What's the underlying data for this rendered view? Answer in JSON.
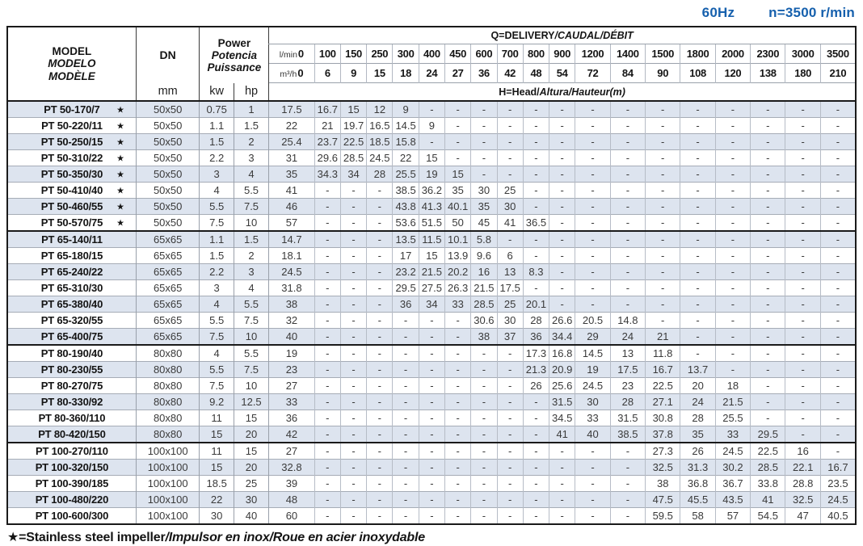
{
  "page": {
    "frequency": "60Hz",
    "speed": "n=3500 r/min",
    "colors": {
      "accent_blue": "#1660ad",
      "row_alt_blue": "#dde4ef",
      "border_dark": "#1a1a1a"
    },
    "footnote_parts": [
      {
        "text": "★=Stainless steel impeller",
        "style": "normal"
      },
      {
        "text": "/Impulsor en inox/Roue en acier inoxydable",
        "style": "italic"
      }
    ]
  },
  "table": {
    "star_symbol": "★",
    "header": {
      "model_parts": [
        {
          "text": "MODEL",
          "style": "normal"
        },
        {
          "text": "MODELO",
          "style": "italic"
        },
        {
          "text": "MODÈLE",
          "style": "italic"
        }
      ],
      "dn_label": "DN",
      "dn_unit": "mm",
      "power_parts": [
        {
          "text": "Power",
          "style": "normal"
        },
        {
          "text": "Potencia",
          "style": "italic"
        },
        {
          "text": "Puissance",
          "style": "italic"
        }
      ],
      "power_units": [
        "kw",
        "hp"
      ],
      "delivery_title_parts": [
        {
          "text": "Q=DELIVERY",
          "style": "normal"
        },
        {
          "text": "/CAUDAL/DÉBIT",
          "style": "italic"
        }
      ],
      "head_title_parts": [
        {
          "text": "H=Head/",
          "style": "normal"
        },
        {
          "text": "Altura/Hauteur(m)",
          "style": "italic"
        }
      ],
      "flow_lmin_label": "l/min",
      "flow_m3h_label": "m³/h",
      "flow_lmin": [
        "0",
        "100",
        "150",
        "250",
        "300",
        "400",
        "450",
        "600",
        "700",
        "800",
        "900",
        "1200",
        "1400",
        "1500",
        "1800",
        "2000",
        "2300",
        "3000",
        "3500"
      ],
      "flow_m3h": [
        "0",
        "6",
        "9",
        "15",
        "18",
        "24",
        "27",
        "36",
        "42",
        "48",
        "54",
        "72",
        "84",
        "90",
        "108",
        "120",
        "138",
        "180",
        "210"
      ]
    },
    "rows": [
      {
        "group": "PT50",
        "model": "PT 50-170/7",
        "star": true,
        "dn": "50x50",
        "kw": "0.75",
        "hp": "1",
        "heads": [
          "17.5",
          "16.7",
          "15",
          "12",
          "9",
          "-",
          "-",
          "-",
          "-",
          "-",
          "-",
          "-",
          "-",
          "-",
          "-",
          "-",
          "-",
          "-",
          "-"
        ]
      },
      {
        "group": "PT50",
        "model": "PT 50-220/11",
        "star": true,
        "dn": "50x50",
        "kw": "1.1",
        "hp": "1.5",
        "heads": [
          "22",
          "21",
          "19.7",
          "16.5",
          "14.5",
          "9",
          "-",
          "-",
          "-",
          "-",
          "-",
          "-",
          "-",
          "-",
          "-",
          "-",
          "-",
          "-",
          "-"
        ]
      },
      {
        "group": "PT50",
        "model": "PT 50-250/15",
        "star": true,
        "dn": "50x50",
        "kw": "1.5",
        "hp": "2",
        "heads": [
          "25.4",
          "23.7",
          "22.5",
          "18.5",
          "15.8",
          "-",
          "-",
          "-",
          "-",
          "-",
          "-",
          "-",
          "-",
          "-",
          "-",
          "-",
          "-",
          "-",
          "-"
        ]
      },
      {
        "group": "PT50",
        "model": "PT 50-310/22",
        "star": true,
        "dn": "50x50",
        "kw": "2.2",
        "hp": "3",
        "heads": [
          "31",
          "29.6",
          "28.5",
          "24.5",
          "22",
          "15",
          "-",
          "-",
          "-",
          "-",
          "-",
          "-",
          "-",
          "-",
          "-",
          "-",
          "-",
          "-",
          "-"
        ]
      },
      {
        "group": "PT50",
        "model": "PT 50-350/30",
        "star": true,
        "dn": "50x50",
        "kw": "3",
        "hp": "4",
        "heads": [
          "35",
          "34.3",
          "34",
          "28",
          "25.5",
          "19",
          "15",
          "-",
          "-",
          "-",
          "-",
          "-",
          "-",
          "-",
          "-",
          "-",
          "-",
          "-",
          "-"
        ]
      },
      {
        "group": "PT50",
        "model": "PT 50-410/40",
        "star": true,
        "dn": "50x50",
        "kw": "4",
        "hp": "5.5",
        "heads": [
          "41",
          "-",
          "-",
          "-",
          "38.5",
          "36.2",
          "35",
          "30",
          "25",
          "-",
          "-",
          "-",
          "-",
          "-",
          "-",
          "-",
          "-",
          "-",
          "-"
        ]
      },
      {
        "group": "PT50",
        "model": "PT 50-460/55",
        "star": true,
        "dn": "50x50",
        "kw": "5.5",
        "hp": "7.5",
        "heads": [
          "46",
          "-",
          "-",
          "-",
          "43.8",
          "41.3",
          "40.1",
          "35",
          "30",
          "-",
          "-",
          "-",
          "-",
          "-",
          "-",
          "-",
          "-",
          "-",
          "-"
        ]
      },
      {
        "group": "PT50",
        "model": "PT 50-570/75",
        "star": true,
        "dn": "50x50",
        "kw": "7.5",
        "hp": "10",
        "heads": [
          "57",
          "-",
          "-",
          "-",
          "53.6",
          "51.5",
          "50",
          "45",
          "41",
          "36.5",
          "-",
          "-",
          "-",
          "-",
          "-",
          "-",
          "-",
          "-",
          "-"
        ]
      },
      {
        "group": "PT65",
        "model": "PT 65-140/11",
        "star": false,
        "dn": "65x65",
        "kw": "1.1",
        "hp": "1.5",
        "heads": [
          "14.7",
          "-",
          "-",
          "-",
          "13.5",
          "11.5",
          "10.1",
          "5.8",
          "-",
          "-",
          "-",
          "-",
          "-",
          "-",
          "-",
          "-",
          "-",
          "-",
          "-"
        ]
      },
      {
        "group": "PT65",
        "model": "PT 65-180/15",
        "star": false,
        "dn": "65x65",
        "kw": "1.5",
        "hp": "2",
        "heads": [
          "18.1",
          "-",
          "-",
          "-",
          "17",
          "15",
          "13.9",
          "9.6",
          "6",
          "-",
          "-",
          "-",
          "-",
          "-",
          "-",
          "-",
          "-",
          "-",
          "-"
        ]
      },
      {
        "group": "PT65",
        "model": "PT 65-240/22",
        "star": false,
        "dn": "65x65",
        "kw": "2.2",
        "hp": "3",
        "heads": [
          "24.5",
          "-",
          "-",
          "-",
          "23.2",
          "21.5",
          "20.2",
          "16",
          "13",
          "8.3",
          "-",
          "-",
          "-",
          "-",
          "-",
          "-",
          "-",
          "-",
          "-"
        ]
      },
      {
        "group": "PT65",
        "model": "PT 65-310/30",
        "star": false,
        "dn": "65x65",
        "kw": "3",
        "hp": "4",
        "heads": [
          "31.8",
          "-",
          "-",
          "-",
          "29.5",
          "27.5",
          "26.3",
          "21.5",
          "17.5",
          "-",
          "-",
          "-",
          "-",
          "-",
          "-",
          "-",
          "-",
          "-",
          "-"
        ]
      },
      {
        "group": "PT65",
        "model": "PT 65-380/40",
        "star": false,
        "dn": "65x65",
        "kw": "4",
        "hp": "5.5",
        "heads": [
          "38",
          "-",
          "-",
          "-",
          "36",
          "34",
          "33",
          "28.5",
          "25",
          "20.1",
          "-",
          "-",
          "-",
          "-",
          "-",
          "-",
          "-",
          "-",
          "-"
        ]
      },
      {
        "group": "PT65",
        "model": "PT 65-320/55",
        "star": false,
        "dn": "65x65",
        "kw": "5.5",
        "hp": "7.5",
        "heads": [
          "32",
          "-",
          "-",
          "-",
          "-",
          "-",
          "-",
          "30.6",
          "30",
          "28",
          "26.6",
          "20.5",
          "14.8",
          "-",
          "-",
          "-",
          "-",
          "-",
          "-"
        ]
      },
      {
        "group": "PT65",
        "model": "PT 65-400/75",
        "star": false,
        "dn": "65x65",
        "kw": "7.5",
        "hp": "10",
        "heads": [
          "40",
          "-",
          "-",
          "-",
          "-",
          "-",
          "-",
          "38",
          "37",
          "36",
          "34.4",
          "29",
          "24",
          "21",
          "-",
          "-",
          "-",
          "-",
          "-"
        ]
      },
      {
        "group": "PT80",
        "model": "PT 80-190/40",
        "star": false,
        "dn": "80x80",
        "kw": "4",
        "hp": "5.5",
        "heads": [
          "19",
          "-",
          "-",
          "-",
          "-",
          "-",
          "-",
          "-",
          "-",
          "17.3",
          "16.8",
          "14.5",
          "13",
          "11.8",
          "-",
          "-",
          "-",
          "-",
          "-"
        ]
      },
      {
        "group": "PT80",
        "model": "PT 80-230/55",
        "star": false,
        "dn": "80x80",
        "kw": "5.5",
        "hp": "7.5",
        "heads": [
          "23",
          "-",
          "-",
          "-",
          "-",
          "-",
          "-",
          "-",
          "-",
          "21.3",
          "20.9",
          "19",
          "17.5",
          "16.7",
          "13.7",
          "-",
          "-",
          "-",
          "-"
        ]
      },
      {
        "group": "PT80",
        "model": "PT 80-270/75",
        "star": false,
        "dn": "80x80",
        "kw": "7.5",
        "hp": "10",
        "heads": [
          "27",
          "-",
          "-",
          "-",
          "-",
          "-",
          "-",
          "-",
          "-",
          "26",
          "25.6",
          "24.5",
          "23",
          "22.5",
          "20",
          "18",
          "-",
          "-",
          "-"
        ]
      },
      {
        "group": "PT80",
        "model": "PT 80-330/92",
        "star": false,
        "dn": "80x80",
        "kw": "9.2",
        "hp": "12.5",
        "heads": [
          "33",
          "-",
          "-",
          "-",
          "-",
          "-",
          "-",
          "-",
          "-",
          "-",
          "31.5",
          "30",
          "28",
          "27.1",
          "24",
          "21.5",
          "-",
          "-",
          "-"
        ]
      },
      {
        "group": "PT80",
        "model": "PT 80-360/110",
        "star": false,
        "dn": "80x80",
        "kw": "11",
        "hp": "15",
        "heads": [
          "36",
          "-",
          "-",
          "-",
          "-",
          "-",
          "-",
          "-",
          "-",
          "-",
          "34.5",
          "33",
          "31.5",
          "30.8",
          "28",
          "25.5",
          "-",
          "-",
          "-"
        ]
      },
      {
        "group": "PT80",
        "model": "PT 80-420/150",
        "star": false,
        "dn": "80x80",
        "kw": "15",
        "hp": "20",
        "heads": [
          "42",
          "-",
          "-",
          "-",
          "-",
          "-",
          "-",
          "-",
          "-",
          "-",
          "41",
          "40",
          "38.5",
          "37.8",
          "35",
          "33",
          "29.5",
          "-",
          "-"
        ]
      },
      {
        "group": "PT100",
        "model": "PT 100-270/110",
        "star": false,
        "dn": "100x100",
        "kw": "11",
        "hp": "15",
        "heads": [
          "27",
          "-",
          "-",
          "-",
          "-",
          "-",
          "-",
          "-",
          "-",
          "-",
          "-",
          "-",
          "-",
          "27.3",
          "26",
          "24.5",
          "22.5",
          "16",
          "-"
        ]
      },
      {
        "group": "PT100",
        "model": "PT 100-320/150",
        "star": false,
        "dn": "100x100",
        "kw": "15",
        "hp": "20",
        "heads": [
          "32.8",
          "-",
          "-",
          "-",
          "-",
          "-",
          "-",
          "-",
          "-",
          "-",
          "-",
          "-",
          "-",
          "32.5",
          "31.3",
          "30.2",
          "28.5",
          "22.1",
          "16.7"
        ]
      },
      {
        "group": "PT100",
        "model": "PT 100-390/185",
        "star": false,
        "dn": "100x100",
        "kw": "18.5",
        "hp": "25",
        "heads": [
          "39",
          "-",
          "-",
          "-",
          "-",
          "-",
          "-",
          "-",
          "-",
          "-",
          "-",
          "-",
          "-",
          "38",
          "36.8",
          "36.7",
          "33.8",
          "28.8",
          "23.5"
        ]
      },
      {
        "group": "PT100",
        "model": "PT 100-480/220",
        "star": false,
        "dn": "100x100",
        "kw": "22",
        "hp": "30",
        "heads": [
          "48",
          "-",
          "-",
          "-",
          "-",
          "-",
          "-",
          "-",
          "-",
          "-",
          "-",
          "-",
          "-",
          "47.5",
          "45.5",
          "43.5",
          "41",
          "32.5",
          "24.5"
        ]
      },
      {
        "group": "PT100",
        "model": "PT 100-600/300",
        "star": false,
        "dn": "100x100",
        "kw": "30",
        "hp": "40",
        "heads": [
          "60",
          "-",
          "-",
          "-",
          "-",
          "-",
          "-",
          "-",
          "-",
          "-",
          "-",
          "-",
          "-",
          "59.5",
          "58",
          "57",
          "54.5",
          "47",
          "40.5"
        ]
      }
    ]
  }
}
